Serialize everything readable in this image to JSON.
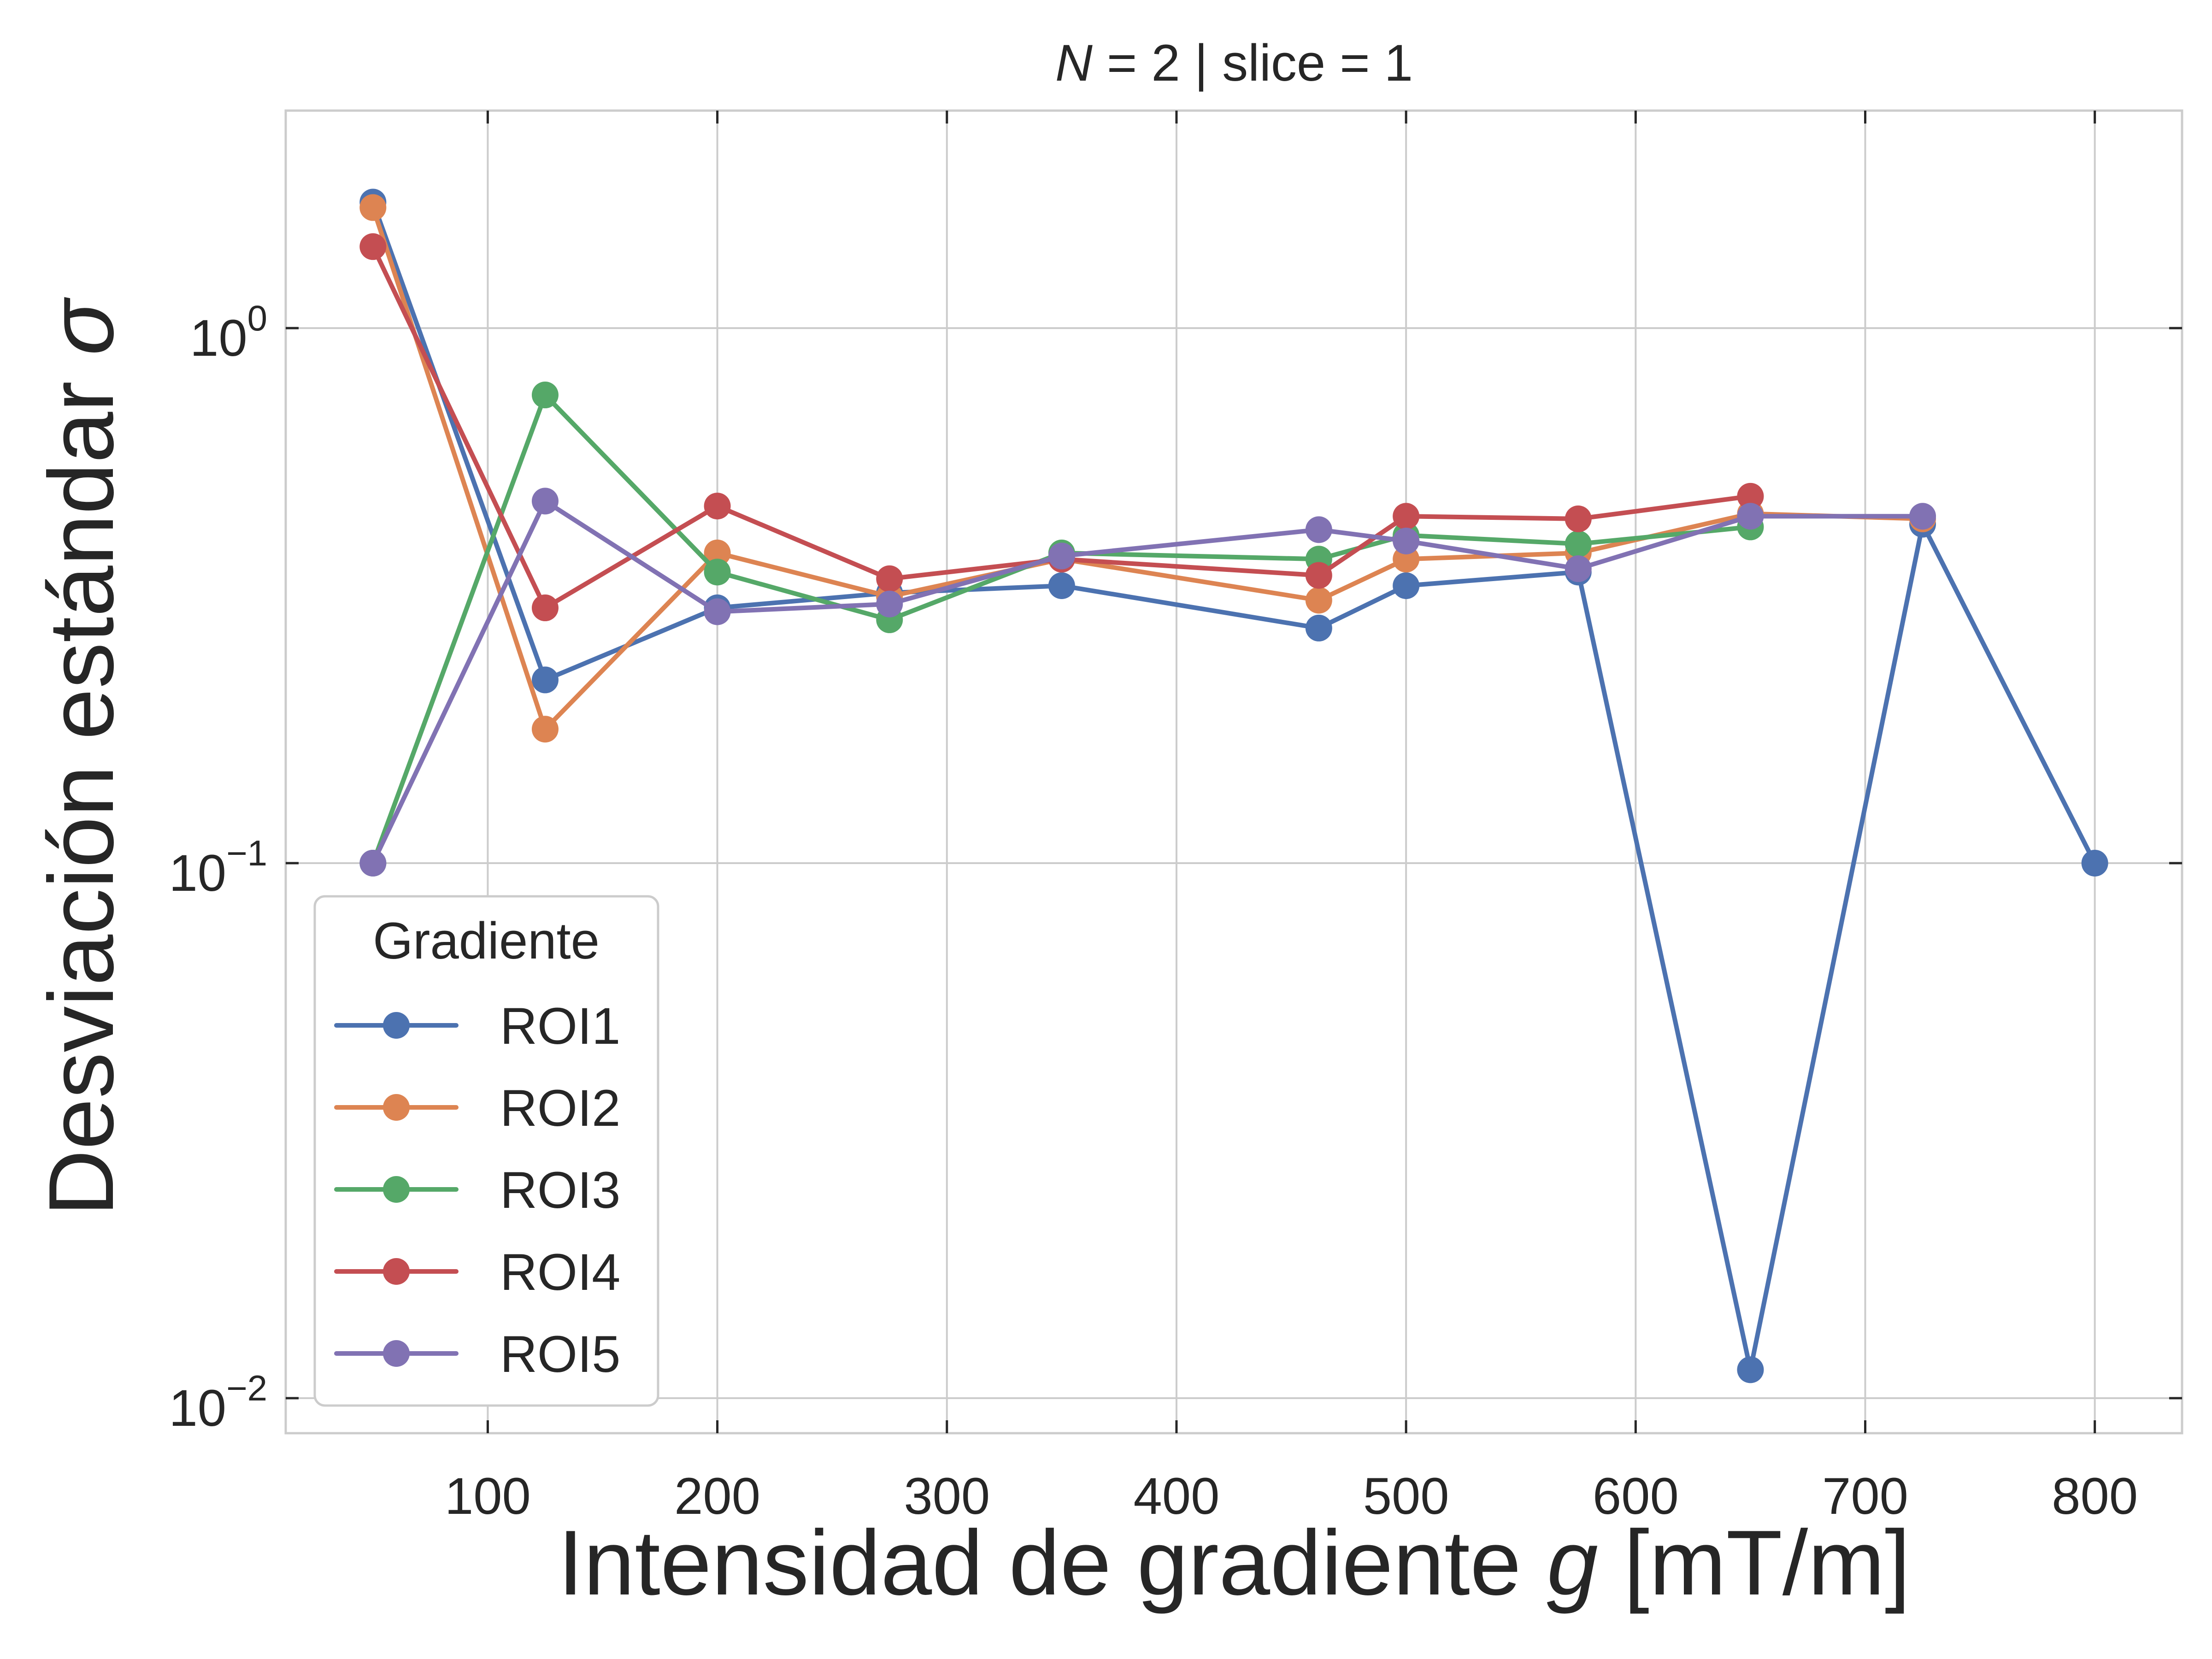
{
  "chart_data": {
    "type": "line",
    "title": "N = 2 | slice = 1",
    "title_parts": {
      "var": "N",
      "rest": " = 2 | slice = 1"
    },
    "xlabel": "Intensidad de gradiente g [mT/m]",
    "xlabel_parts": {
      "pre": "Intensidad de gradiente ",
      "var": "g",
      "post": " [mT/m]"
    },
    "ylabel": "Desviación estándar σ",
    "ylabel_parts": {
      "pre": "Desviación estándar ",
      "var": "σ"
    },
    "xlim": [
      12,
      838
    ],
    "ylim": [
      0.0086,
      2.55
    ],
    "yscale": "log",
    "grid": true,
    "x_ticks": [
      100,
      200,
      300,
      400,
      500,
      600,
      700,
      800
    ],
    "x_tick_labels": [
      "100",
      "200",
      "300",
      "400",
      "500",
      "600",
      "700",
      "800"
    ],
    "y_ticks": [
      {
        "value": 1,
        "base": "10",
        "exp": "0"
      },
      {
        "value": 0.1,
        "base": "10",
        "exp": "−1"
      },
      {
        "value": 0.01,
        "base": "10",
        "exp": "−2"
      }
    ],
    "legend": {
      "title": "Gradiente",
      "position": "lower-left"
    },
    "series": [
      {
        "name": "ROI1",
        "color": "#4c72b0",
        "points": [
          [
            50,
            1.72
          ],
          [
            125,
            0.22
          ],
          [
            200,
            0.3
          ],
          [
            275,
            0.32
          ],
          [
            350,
            0.33
          ],
          [
            462,
            0.275
          ],
          [
            500,
            0.33
          ],
          [
            575,
            0.35
          ],
          [
            650,
            0.0113
          ],
          [
            725,
            0.43
          ],
          [
            800,
            0.1
          ]
        ]
      },
      {
        "name": "ROI2",
        "color": "#dd8452",
        "points": [
          [
            50,
            1.68
          ],
          [
            125,
            0.178
          ],
          [
            200,
            0.38
          ],
          [
            275,
            0.315
          ],
          [
            350,
            0.37
          ],
          [
            462,
            0.31
          ],
          [
            500,
            0.37
          ],
          [
            575,
            0.38
          ],
          [
            650,
            0.45
          ],
          [
            725,
            0.44
          ]
        ]
      },
      {
        "name": "ROI3",
        "color": "#55a868",
        "points": [
          [
            50,
            0.1
          ],
          [
            125,
            0.75
          ],
          [
            200,
            0.35
          ],
          [
            275,
            0.285
          ],
          [
            350,
            0.38
          ],
          [
            462,
            0.37
          ],
          [
            500,
            0.41
          ],
          [
            575,
            0.395
          ],
          [
            650,
            0.425
          ]
        ]
      },
      {
        "name": "ROI4",
        "color": "#c44e52",
        "points": [
          [
            50,
            1.42
          ],
          [
            125,
            0.3
          ],
          [
            200,
            0.465
          ],
          [
            275,
            0.34
          ],
          [
            350,
            0.37
          ],
          [
            462,
            0.345
          ],
          [
            500,
            0.445
          ],
          [
            575,
            0.44
          ],
          [
            650,
            0.485
          ]
        ]
      },
      {
        "name": "ROI5",
        "color": "#8172b3",
        "points": [
          [
            50,
            0.1
          ],
          [
            125,
            0.475
          ],
          [
            200,
            0.295
          ],
          [
            275,
            0.305
          ],
          [
            350,
            0.375
          ],
          [
            462,
            0.42
          ],
          [
            500,
            0.4
          ],
          [
            575,
            0.355
          ],
          [
            650,
            0.445
          ],
          [
            725,
            0.445
          ]
        ]
      }
    ]
  }
}
